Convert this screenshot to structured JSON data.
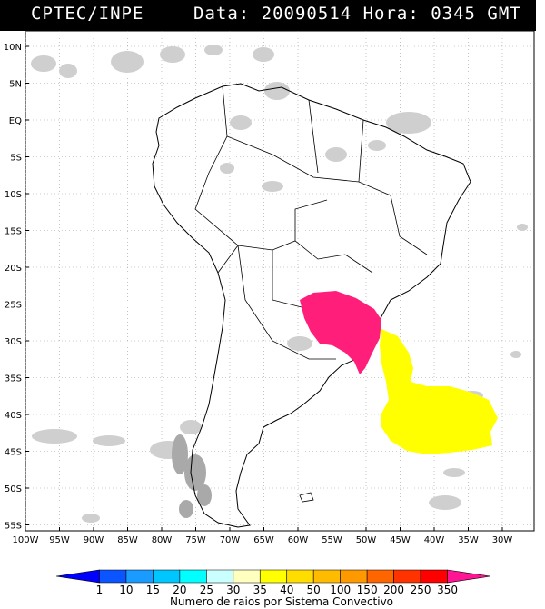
{
  "header": {
    "source": "CPTEC/INPE",
    "datetime": "Data: 20090514 Hora: 0345 GMT"
  },
  "map": {
    "lat_labels": [
      "10N",
      "5N",
      "EQ",
      "5S",
      "10S",
      "15S",
      "20S",
      "25S",
      "30S",
      "35S",
      "40S",
      "45S",
      "50S",
      "55S"
    ],
    "lon_labels": [
      "100W",
      "95W",
      "90W",
      "85W",
      "80W",
      "75W",
      "70W",
      "65W",
      "60W",
      "55W",
      "50W",
      "45W",
      "40W",
      "35W",
      "30W"
    ],
    "colors": {
      "land_outline": "#000000",
      "cloud": "#cfcfcf",
      "cloud_dark": "#a9a9a9",
      "grid": "#9e9e9e"
    }
  },
  "colorbar": {
    "values": [
      "1",
      "10",
      "15",
      "20",
      "25",
      "30",
      "35",
      "40",
      "50",
      "100",
      "150",
      "200",
      "250",
      "350"
    ],
    "colors": [
      "#0000ff",
      "#0a55ff",
      "#1a9bff",
      "#00c6ff",
      "#00ffff",
      "#c9ffff",
      "#ffffc0",
      "#ffff00",
      "#ffdd00",
      "#ffbb00",
      "#ff9900",
      "#ff6600",
      "#ff3300",
      "#ff0000",
      "#ff1493"
    ],
    "caption": "Numero de raios por Sistema Convectivo"
  }
}
